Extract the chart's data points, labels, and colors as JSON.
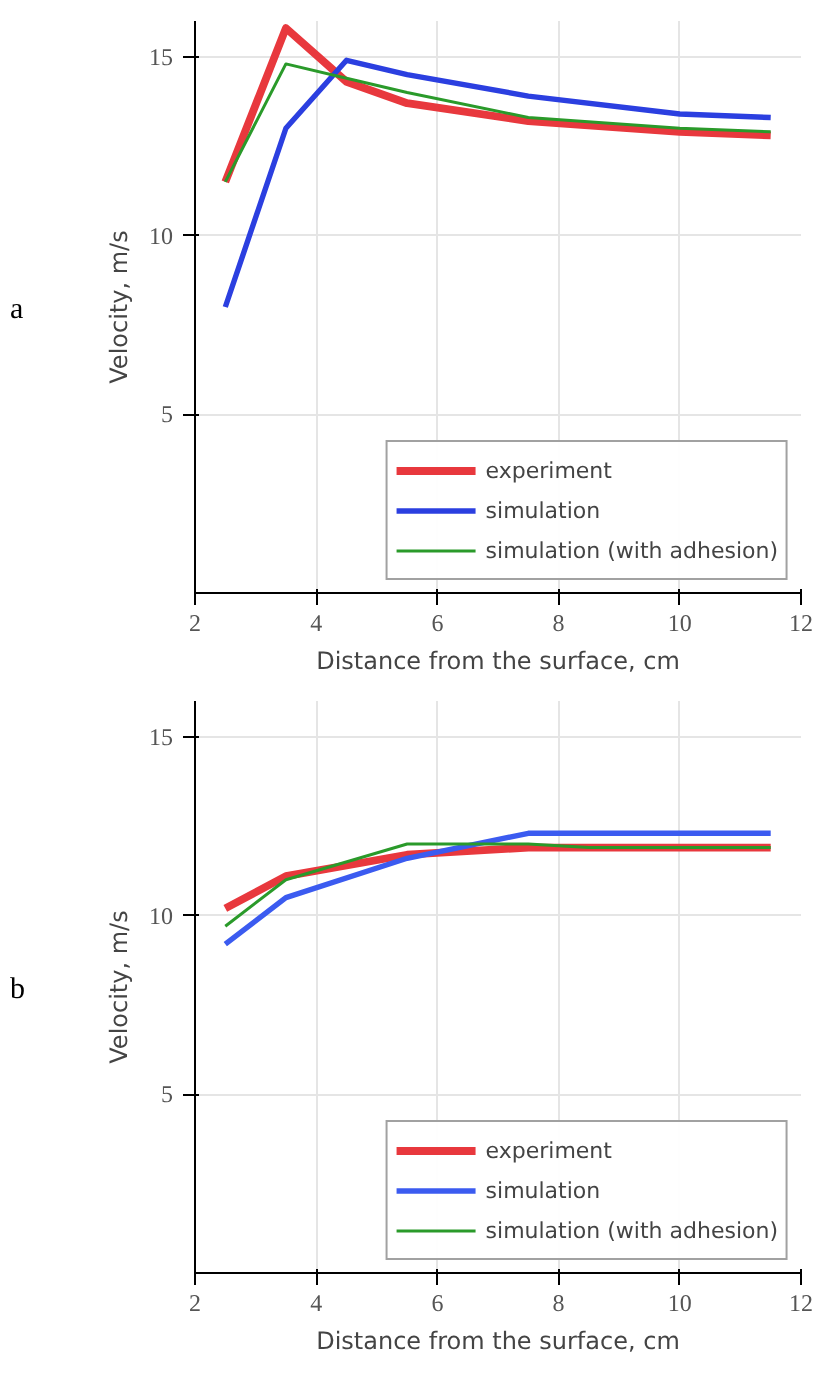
{
  "chart_data": [
    {
      "type": "line",
      "xlabel": "Distance from the surface, cm",
      "ylabel": "Velocity, m/s",
      "annotations": [
        "a"
      ],
      "xlim": [
        2,
        12
      ],
      "ylim": [
        0,
        16
      ],
      "xticks": [
        2,
        4,
        6,
        8,
        10,
        12
      ],
      "yticks": [
        5,
        10,
        15
      ],
      "grid": true,
      "legend": "bottom right",
      "x": [
        2.5,
        3.5,
        4.5,
        5.5,
        7.5,
        10,
        11.5
      ],
      "series": [
        {
          "name": "experiment",
          "color": "#e8383d",
          "values": [
            11.5,
            15.8,
            14.3,
            13.7,
            13.2,
            12.9,
            12.8
          ]
        },
        {
          "name": "simulation",
          "color": "#2b3fe0",
          "values": [
            8,
            13,
            14.9,
            14.5,
            13.9,
            13.4,
            13.3
          ]
        },
        {
          "name": "simulation (with adhesion)",
          "color": "#2a9a2a",
          "values": [
            11.5,
            14.8,
            14.4,
            14.0,
            13.3,
            13.0,
            12.9
          ]
        }
      ]
    },
    {
      "type": "line",
      "xlabel": "Distance from the surface, cm",
      "ylabel": "Velocity, m/s",
      "annotations": [
        "b"
      ],
      "xlim": [
        2,
        12
      ],
      "ylim": [
        0,
        16
      ],
      "xticks": [
        2,
        4,
        6,
        8,
        10,
        12
      ],
      "yticks": [
        5,
        10,
        15
      ],
      "grid": true,
      "legend": "bottom right",
      "series": [
        {
          "name": "experiment",
          "color": "#e8383d",
          "x": [
            2.5,
            3.5,
            5.5,
            7.5,
            11.5
          ],
          "values": [
            10.2,
            11.1,
            11.7,
            11.9,
            11.9
          ]
        },
        {
          "name": "simulation",
          "color": "#3b5bf0",
          "x": [
            2.5,
            3.5,
            5.5,
            7.5,
            11.5
          ],
          "values": [
            9.2,
            10.5,
            11.6,
            12.3,
            12.3
          ]
        },
        {
          "name": "simulation (with adhesion)",
          "color": "#2a9a2a",
          "x": [
            2.5,
            3.5,
            5.5,
            7.5,
            8.5,
            11.5
          ],
          "values": [
            9.7,
            11.0,
            12.0,
            12.0,
            11.9,
            11.9
          ]
        }
      ]
    }
  ]
}
